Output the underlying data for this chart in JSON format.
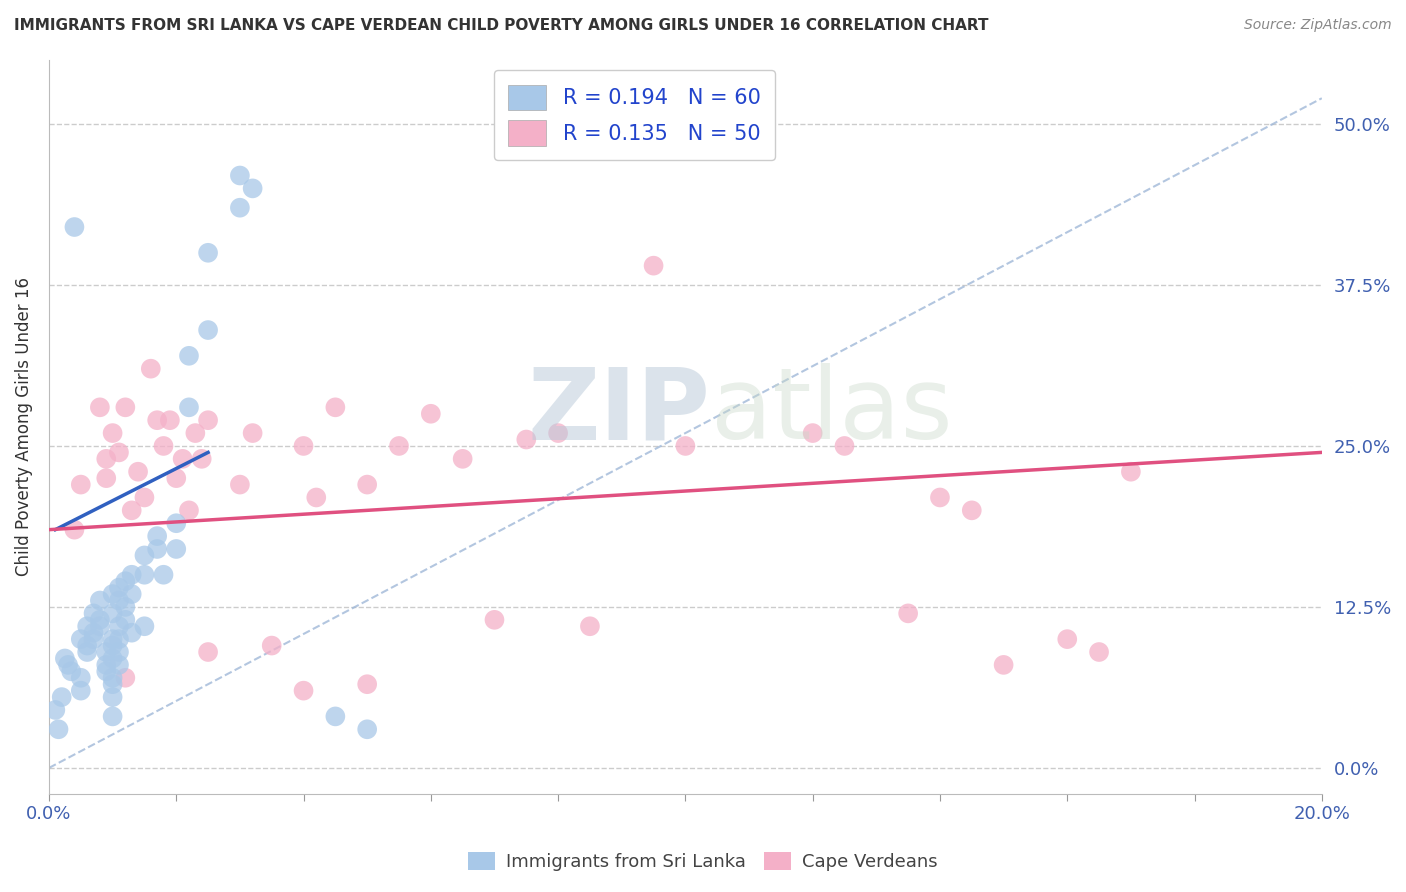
{
  "title": "IMMIGRANTS FROM SRI LANKA VS CAPE VERDEAN CHILD POVERTY AMONG GIRLS UNDER 16 CORRELATION CHART",
  "source": "Source: ZipAtlas.com",
  "ylabel": "Child Poverty Among Girls Under 16",
  "ytick_vals": [
    0.0,
    12.5,
    25.0,
    37.5,
    50.0
  ],
  "xlim": [
    0.0,
    20.0
  ],
  "ylim": [
    -2.0,
    55.0
  ],
  "legend_sri_lanka_r": "R = 0.194",
  "legend_sri_lanka_n": "N = 60",
  "legend_cape_verdean_r": "R = 0.135",
  "legend_cape_verdean_n": "N = 50",
  "sri_lanka_color": "#a8c8e8",
  "cape_verdean_color": "#f4b0c8",
  "sri_lanka_line_color": "#3060c0",
  "cape_verdean_line_color": "#e05080",
  "watermark_zip": "ZIP",
  "watermark_atlas": "atlas",
  "sri_lanka_scatter": [
    [
      0.1,
      4.5
    ],
    [
      0.15,
      3.0
    ],
    [
      0.2,
      5.5
    ],
    [
      0.25,
      8.5
    ],
    [
      0.3,
      8.0
    ],
    [
      0.35,
      7.5
    ],
    [
      0.4,
      42.0
    ],
    [
      0.5,
      10.0
    ],
    [
      0.5,
      7.0
    ],
    [
      0.5,
      6.0
    ],
    [
      0.6,
      11.0
    ],
    [
      0.6,
      9.5
    ],
    [
      0.6,
      9.0
    ],
    [
      0.7,
      12.0
    ],
    [
      0.7,
      10.5
    ],
    [
      0.7,
      10.0
    ],
    [
      0.8,
      13.0
    ],
    [
      0.8,
      11.5
    ],
    [
      0.8,
      11.0
    ],
    [
      0.9,
      9.0
    ],
    [
      0.9,
      8.0
    ],
    [
      0.9,
      7.5
    ],
    [
      1.0,
      13.5
    ],
    [
      1.0,
      12.0
    ],
    [
      1.0,
      10.0
    ],
    [
      1.0,
      9.5
    ],
    [
      1.0,
      8.5
    ],
    [
      1.0,
      7.0
    ],
    [
      1.0,
      6.5
    ],
    [
      1.0,
      5.5
    ],
    [
      1.0,
      4.0
    ],
    [
      1.1,
      14.0
    ],
    [
      1.1,
      13.0
    ],
    [
      1.1,
      11.0
    ],
    [
      1.1,
      10.0
    ],
    [
      1.1,
      9.0
    ],
    [
      1.1,
      8.0
    ],
    [
      1.2,
      14.5
    ],
    [
      1.2,
      12.5
    ],
    [
      1.2,
      11.5
    ],
    [
      1.3,
      15.0
    ],
    [
      1.3,
      13.5
    ],
    [
      1.3,
      10.5
    ],
    [
      1.5,
      16.5
    ],
    [
      1.5,
      15.0
    ],
    [
      1.5,
      11.0
    ],
    [
      1.7,
      18.0
    ],
    [
      1.7,
      17.0
    ],
    [
      1.8,
      15.0
    ],
    [
      2.0,
      19.0
    ],
    [
      2.0,
      17.0
    ],
    [
      2.2,
      32.0
    ],
    [
      2.2,
      28.0
    ],
    [
      2.5,
      34.0
    ],
    [
      2.5,
      40.0
    ],
    [
      3.0,
      46.0
    ],
    [
      3.0,
      43.5
    ],
    [
      3.2,
      45.0
    ],
    [
      4.5,
      4.0
    ],
    [
      5.0,
      3.0
    ]
  ],
  "cape_verdean_scatter": [
    [
      0.4,
      18.5
    ],
    [
      0.5,
      22.0
    ],
    [
      0.8,
      28.0
    ],
    [
      0.9,
      24.0
    ],
    [
      0.9,
      22.5
    ],
    [
      1.0,
      26.0
    ],
    [
      1.1,
      24.5
    ],
    [
      1.2,
      28.0
    ],
    [
      1.3,
      20.0
    ],
    [
      1.4,
      23.0
    ],
    [
      1.5,
      21.0
    ],
    [
      1.6,
      31.0
    ],
    [
      1.7,
      27.0
    ],
    [
      1.8,
      25.0
    ],
    [
      1.9,
      27.0
    ],
    [
      2.0,
      22.5
    ],
    [
      2.1,
      24.0
    ],
    [
      2.2,
      20.0
    ],
    [
      2.3,
      26.0
    ],
    [
      2.4,
      24.0
    ],
    [
      2.5,
      27.0
    ],
    [
      3.0,
      22.0
    ],
    [
      3.2,
      26.0
    ],
    [
      4.0,
      25.0
    ],
    [
      4.2,
      21.0
    ],
    [
      4.5,
      28.0
    ],
    [
      5.0,
      22.0
    ],
    [
      5.5,
      25.0
    ],
    [
      6.0,
      27.5
    ],
    [
      6.5,
      24.0
    ],
    [
      7.5,
      25.5
    ],
    [
      8.0,
      26.0
    ],
    [
      9.5,
      39.0
    ],
    [
      10.0,
      25.0
    ],
    [
      12.0,
      26.0
    ],
    [
      12.5,
      25.0
    ],
    [
      13.5,
      12.0
    ],
    [
      14.0,
      21.0
    ],
    [
      14.5,
      20.0
    ],
    [
      15.0,
      8.0
    ],
    [
      16.0,
      10.0
    ],
    [
      16.5,
      9.0
    ],
    [
      17.0,
      23.0
    ],
    [
      4.0,
      6.0
    ],
    [
      5.0,
      6.5
    ],
    [
      7.0,
      11.5
    ],
    [
      8.5,
      11.0
    ],
    [
      2.5,
      9.0
    ],
    [
      3.5,
      9.5
    ],
    [
      1.2,
      7.0
    ]
  ],
  "sri_lanka_trendline": [
    [
      0.1,
      18.5
    ],
    [
      2.5,
      24.5
    ]
  ],
  "cape_verdean_trendline": [
    [
      0.0,
      18.5
    ],
    [
      20.0,
      24.5
    ]
  ],
  "diagonal_line": [
    [
      0.0,
      0.0
    ],
    [
      20.0,
      52.0
    ]
  ]
}
